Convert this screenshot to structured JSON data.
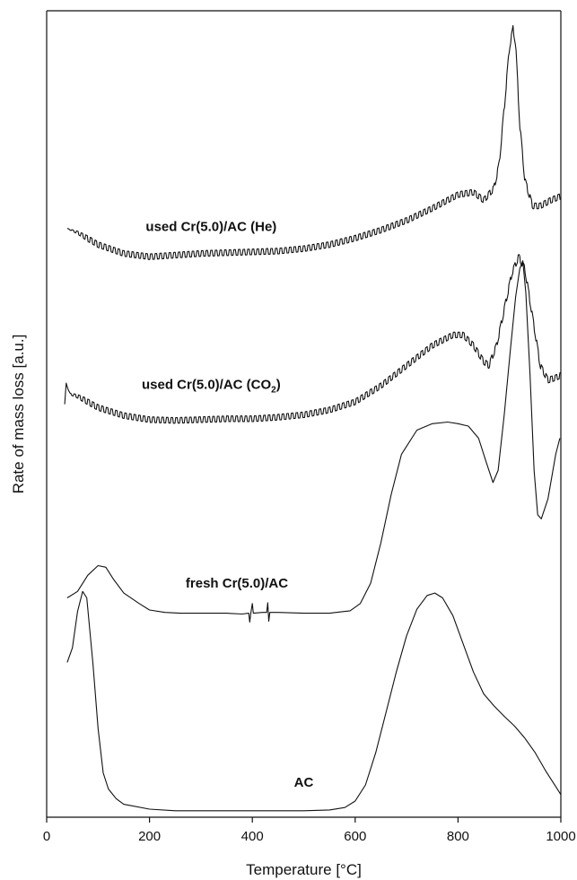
{
  "chart_data": {
    "type": "line",
    "xlabel": "Temperature [°C]",
    "ylabel": "Rate of mass loss [a.u.]",
    "xlim": [
      0,
      1000
    ],
    "ylim": [
      0,
      100
    ],
    "x_ticks": [
      "0",
      "200",
      "400",
      "600",
      "800",
      "1000"
    ],
    "x_tick_values": [
      0,
      200,
      400,
      600,
      800,
      1000
    ],
    "y_ticks": [],
    "grid": false,
    "series": [
      {
        "name": "used Cr(5.0)/AC (He)",
        "label_parts": [
          "used Cr(5.0)/AC (He)"
        ],
        "label_at": [
          320,
          72.7
        ],
        "oscillation": 0.35,
        "points": [
          [
            40,
            73.0
          ],
          [
            60,
            72.5
          ],
          [
            100,
            71.0
          ],
          [
            150,
            69.9
          ],
          [
            200,
            69.5
          ],
          [
            250,
            69.7
          ],
          [
            300,
            69.9
          ],
          [
            350,
            70.0
          ],
          [
            400,
            70.1
          ],
          [
            450,
            70.2
          ],
          [
            500,
            70.5
          ],
          [
            550,
            71.0
          ],
          [
            600,
            71.8
          ],
          [
            650,
            72.8
          ],
          [
            700,
            74.0
          ],
          [
            750,
            75.5
          ],
          [
            800,
            77.2
          ],
          [
            830,
            77.5
          ],
          [
            850,
            76.5
          ],
          [
            870,
            78.0
          ],
          [
            880,
            81.0
          ],
          [
            890,
            88.0
          ],
          [
            900,
            95.5
          ],
          [
            907,
            97.8
          ],
          [
            912,
            96.0
          ],
          [
            920,
            86.0
          ],
          [
            930,
            79.0
          ],
          [
            945,
            75.8
          ],
          [
            960,
            75.8
          ],
          [
            980,
            76.5
          ],
          [
            1000,
            77.0
          ]
        ]
      },
      {
        "name": "used Cr(5.0)/AC (CO2)",
        "label_parts": [
          "used Cr(5.0)/AC (CO",
          "2",
          ")"
        ],
        "label_at": [
          320,
          53.1
        ],
        "oscillation": 0.35,
        "points": [
          [
            35,
            51.2
          ],
          [
            38,
            53.8
          ],
          [
            45,
            52.5
          ],
          [
            60,
            52.2
          ],
          [
            100,
            50.8
          ],
          [
            150,
            49.8
          ],
          [
            200,
            49.3
          ],
          [
            250,
            49.2
          ],
          [
            300,
            49.3
          ],
          [
            350,
            49.4
          ],
          [
            400,
            49.4
          ],
          [
            450,
            49.6
          ],
          [
            500,
            49.9
          ],
          [
            550,
            50.5
          ],
          [
            600,
            51.5
          ],
          [
            650,
            53.5
          ],
          [
            700,
            56.0
          ],
          [
            750,
            58.5
          ],
          [
            790,
            59.8
          ],
          [
            810,
            59.8
          ],
          [
            830,
            58.5
          ],
          [
            850,
            56.5
          ],
          [
            860,
            56.0
          ],
          [
            875,
            58.5
          ],
          [
            890,
            63.0
          ],
          [
            905,
            67.5
          ],
          [
            918,
            69.5
          ],
          [
            930,
            68.0
          ],
          [
            945,
            62.0
          ],
          [
            960,
            56.0
          ],
          [
            975,
            54.2
          ],
          [
            990,
            54.5
          ],
          [
            1000,
            54.8
          ]
        ]
      },
      {
        "name": "fresh Cr(5.0)/AC",
        "label_parts": [
          "fresh Cr(5.0)/AC"
        ],
        "label_at": [
          370,
          28.5
        ],
        "oscillation": 0,
        "points": [
          [
            40,
            27.2
          ],
          [
            60,
            28.0
          ],
          [
            80,
            30.0
          ],
          [
            100,
            31.2
          ],
          [
            115,
            31.0
          ],
          [
            130,
            29.5
          ],
          [
            150,
            27.8
          ],
          [
            180,
            26.5
          ],
          [
            200,
            25.7
          ],
          [
            230,
            25.4
          ],
          [
            260,
            25.3
          ],
          [
            300,
            25.3
          ],
          [
            350,
            25.3
          ],
          [
            380,
            25.2
          ],
          [
            393,
            25.3
          ],
          [
            395,
            24.2
          ],
          [
            397,
            25.3
          ],
          [
            400,
            26.5
          ],
          [
            402,
            25.3
          ],
          [
            420,
            25.4
          ],
          [
            428,
            25.4
          ],
          [
            430,
            26.6
          ],
          [
            432,
            24.3
          ],
          [
            434,
            25.4
          ],
          [
            450,
            25.4
          ],
          [
            500,
            25.3
          ],
          [
            550,
            25.3
          ],
          [
            590,
            25.6
          ],
          [
            610,
            26.5
          ],
          [
            630,
            29.0
          ],
          [
            650,
            34.0
          ],
          [
            670,
            40.0
          ],
          [
            690,
            45.0
          ],
          [
            720,
            48.0
          ],
          [
            750,
            48.8
          ],
          [
            780,
            49.0
          ],
          [
            800,
            48.8
          ],
          [
            820,
            48.5
          ],
          [
            840,
            47.0
          ],
          [
            855,
            44.0
          ],
          [
            868,
            41.5
          ],
          [
            878,
            43.0
          ],
          [
            890,
            50.0
          ],
          [
            902,
            58.0
          ],
          [
            912,
            64.5
          ],
          [
            920,
            68.0
          ],
          [
            926,
            69.0
          ],
          [
            932,
            65.0
          ],
          [
            940,
            55.0
          ],
          [
            948,
            43.0
          ],
          [
            955,
            37.5
          ],
          [
            962,
            37.0
          ],
          [
            975,
            39.5
          ],
          [
            990,
            45.0
          ],
          [
            998,
            47.0
          ]
        ]
      },
      {
        "name": "AC",
        "label_parts": [
          "AC"
        ],
        "label_at": [
          500,
          3.8
        ],
        "oscillation": 0,
        "points": [
          [
            40,
            19.2
          ],
          [
            50,
            21.0
          ],
          [
            60,
            25.5
          ],
          [
            70,
            28.0
          ],
          [
            78,
            27.2
          ],
          [
            90,
            19.0
          ],
          [
            100,
            11.0
          ],
          [
            110,
            5.5
          ],
          [
            120,
            3.5
          ],
          [
            135,
            2.3
          ],
          [
            150,
            1.6
          ],
          [
            200,
            1.0
          ],
          [
            250,
            0.8
          ],
          [
            300,
            0.8
          ],
          [
            350,
            0.8
          ],
          [
            400,
            0.8
          ],
          [
            450,
            0.8
          ],
          [
            500,
            0.8
          ],
          [
            550,
            0.9
          ],
          [
            580,
            1.2
          ],
          [
            600,
            2.0
          ],
          [
            620,
            4.0
          ],
          [
            640,
            8.0
          ],
          [
            660,
            13.0
          ],
          [
            680,
            18.0
          ],
          [
            700,
            22.5
          ],
          [
            720,
            25.8
          ],
          [
            740,
            27.5
          ],
          [
            755,
            27.8
          ],
          [
            770,
            27.2
          ],
          [
            790,
            25.0
          ],
          [
            810,
            21.5
          ],
          [
            830,
            18.0
          ],
          [
            850,
            15.3
          ],
          [
            870,
            13.8
          ],
          [
            890,
            12.5
          ],
          [
            910,
            11.3
          ],
          [
            930,
            9.8
          ],
          [
            950,
            8.0
          ],
          [
            970,
            5.8
          ],
          [
            990,
            3.8
          ],
          [
            1000,
            2.8
          ]
        ]
      }
    ]
  }
}
